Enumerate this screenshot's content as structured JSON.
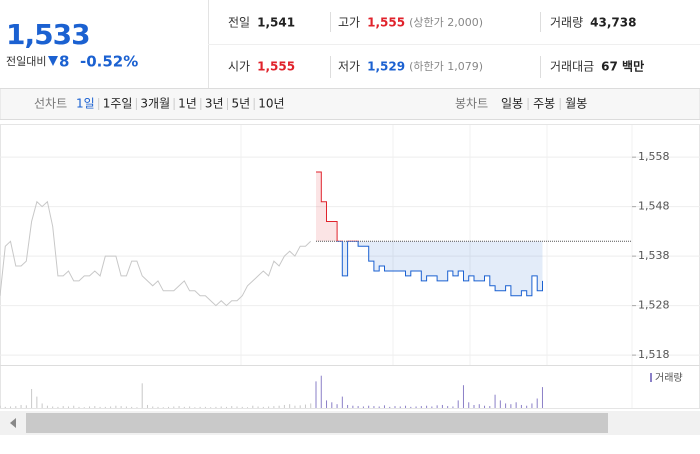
{
  "quote": {
    "price": "1,533",
    "change_label": "전일대비",
    "change": "8",
    "change_pct": "-0.52%"
  },
  "stats": [
    {
      "label": "전일",
      "value": "1,541",
      "color": "#222222"
    },
    {
      "label": "고가",
      "value": "1,555",
      "note": "(상한가 2,000)",
      "color": "#e0222b"
    },
    {
      "label": "거래량",
      "value": "43,738",
      "color": "#222222"
    },
    {
      "label": "시가",
      "value": "1,555",
      "color": "#e0222b"
    },
    {
      "label": "저가",
      "value": "1,529",
      "note": "(하한가 1,079)",
      "color": "#1b61d1"
    },
    {
      "label": "거래대금",
      "value": "67 백만",
      "color": "#222222"
    }
  ],
  "tabs": {
    "line_label": "선차트",
    "line_periods": [
      "1일",
      "1주일",
      "3개월",
      "1년",
      "3년",
      "5년",
      "10년"
    ],
    "selected": 0,
    "candle_label": "봉차트",
    "candle_periods": [
      "일봉",
      "주봉",
      "월봉"
    ]
  },
  "chart_data": {
    "type": "line",
    "x": [
      0,
      1,
      2,
      3,
      4,
      5,
      6,
      7,
      8,
      9,
      10,
      11,
      12,
      13,
      14,
      15,
      16,
      17,
      18,
      19,
      20,
      21,
      22,
      23,
      24,
      25,
      26,
      27,
      28,
      29,
      30,
      31,
      32,
      33,
      34,
      35,
      36,
      37,
      38,
      39,
      40,
      41,
      42,
      43,
      44,
      45,
      46,
      47,
      48,
      49,
      50,
      51,
      52,
      53,
      54,
      55,
      56,
      57,
      58,
      59,
      60,
      61,
      62,
      63,
      64,
      65,
      66,
      67,
      68,
      69,
      70,
      71,
      72,
      73,
      74,
      75,
      76,
      77,
      78,
      79,
      80,
      81,
      82,
      83,
      84,
      85,
      86,
      87,
      88,
      89,
      90,
      91,
      92,
      93,
      94,
      95,
      96,
      97,
      98,
      99,
      100,
      101,
      102,
      103
    ],
    "xlim": [
      0,
      120
    ],
    "ylim": [
      1516,
      1564.5
    ],
    "yticks": [
      {
        "value": 1518,
        "label": "1,518"
      },
      {
        "value": 1528,
        "label": "1,528"
      },
      {
        "value": 1538,
        "label": "1,538"
      },
      {
        "value": 1548,
        "label": "1,548"
      },
      {
        "value": 1558,
        "label": "1,558"
      }
    ],
    "reference": 1541,
    "up_color": "#e0222b",
    "down_color": "#1b61d1",
    "series": [
      {
        "color": "#c8c8c8",
        "values": [
          1530,
          1540,
          1541,
          1536,
          1536,
          1537,
          1545,
          1549,
          1548,
          1549,
          1544,
          1534,
          1534,
          1535,
          1533,
          1533,
          1534,
          1534,
          1535,
          1534,
          1538,
          1538,
          1538,
          1534,
          1534,
          1537,
          1537,
          1534,
          1533,
          1532,
          1533,
          1531,
          1531,
          1531,
          1532,
          1533,
          1531,
          1531,
          1530,
          1530,
          1529,
          1528,
          1529,
          1528,
          1529,
          1529,
          1530,
          1532,
          1533,
          1534,
          1535,
          1534,
          1537,
          1536,
          1538,
          1539,
          1538,
          1540,
          1540,
          1541,
          null,
          null,
          null,
          null,
          null,
          null,
          null,
          null,
          null,
          null,
          null,
          null,
          null,
          null,
          null,
          null,
          null,
          null,
          null,
          null,
          null,
          null,
          null,
          null,
          null,
          null,
          null,
          null,
          null,
          null,
          null,
          null,
          null,
          null,
          null,
          null,
          null,
          null,
          null,
          null,
          null,
          null,
          null,
          null
        ]
      },
      {
        "color": "#1b61d1",
        "values": [
          null,
          null,
          null,
          null,
          null,
          null,
          null,
          null,
          null,
          null,
          null,
          null,
          null,
          null,
          null,
          null,
          null,
          null,
          null,
          null,
          null,
          null,
          null,
          null,
          null,
          null,
          null,
          null,
          null,
          null,
          null,
          null,
          null,
          null,
          null,
          null,
          null,
          null,
          null,
          null,
          null,
          null,
          null,
          null,
          null,
          null,
          null,
          null,
          null,
          null,
          null,
          null,
          null,
          null,
          null,
          null,
          null,
          null,
          null,
          null,
          1555,
          1549,
          1545,
          1545,
          1541,
          1534,
          1541,
          1541,
          1540,
          1540,
          1537,
          1535,
          1536,
          1535,
          1535,
          1535,
          1535,
          1534,
          1535,
          1535,
          1533,
          1534,
          1534,
          1533,
          1533,
          1535,
          1534,
          1535,
          1533,
          1534,
          1533,
          1533,
          1534,
          1532,
          1531,
          1531,
          1532,
          1530,
          1530,
          1531,
          1530,
          1534,
          1531,
          1533
        ]
      }
    ],
    "volume": {
      "name": "거래량",
      "color": "#8a7fc7",
      "y2lim": [
        0,
        1000
      ],
      "values": [
        60,
        30,
        40,
        50,
        80,
        70,
        500,
        300,
        120,
        60,
        40,
        30,
        50,
        40,
        60,
        30,
        20,
        40,
        50,
        30,
        30,
        40,
        60,
        50,
        40,
        30,
        20,
        650,
        80,
        40,
        30,
        20,
        30,
        40,
        50,
        30,
        40,
        20,
        30,
        30,
        20,
        30,
        40,
        30,
        50,
        40,
        30,
        20,
        60,
        40,
        30,
        40,
        50,
        60,
        80,
        100,
        60,
        70,
        90,
        120,
        700,
        850,
        200,
        150,
        100,
        300,
        80,
        60,
        50,
        40,
        60,
        50,
        40,
        70,
        30,
        50,
        40,
        60,
        30,
        40,
        50,
        60,
        40,
        70,
        80,
        50,
        40,
        200,
        600,
        150,
        80,
        100,
        60,
        50,
        350,
        200,
        120,
        100,
        150,
        80,
        60,
        120,
        250,
        550
      ]
    }
  }
}
